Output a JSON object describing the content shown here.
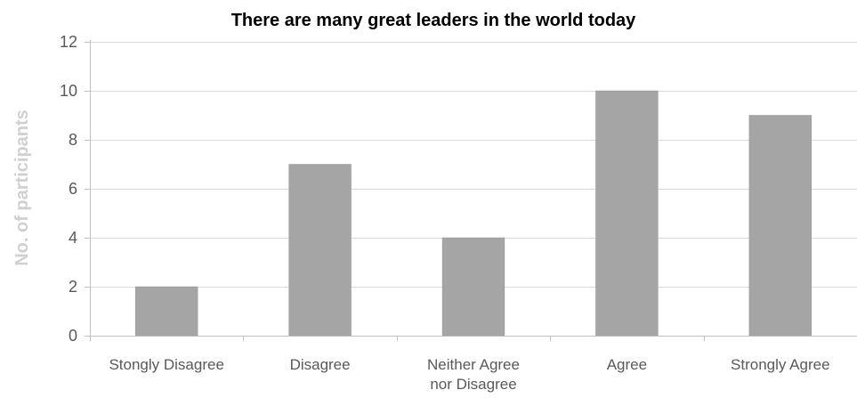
{
  "chart_data": {
    "type": "bar",
    "title": "There are many great leaders in the world today",
    "xlabel": "",
    "ylabel": "No. of participants",
    "categories": [
      [
        "Stongly Disagree"
      ],
      [
        "Disagree"
      ],
      [
        "Neither Agree",
        "nor Disagree"
      ],
      [
        "Agree"
      ],
      [
        "Strongly Agree"
      ]
    ],
    "values": [
      2,
      7,
      4,
      10,
      9
    ],
    "ylim": [
      0,
      12
    ],
    "yticks": [
      0,
      2,
      4,
      6,
      8,
      10,
      12
    ],
    "grid": true,
    "legend": "none",
    "colors": {
      "bar": "#a5a5a5",
      "grid": "#d9d9d9",
      "axis": "#bfbfbf",
      "tick_text": "#595959",
      "ylabel_text": "#d0d0d0"
    }
  }
}
